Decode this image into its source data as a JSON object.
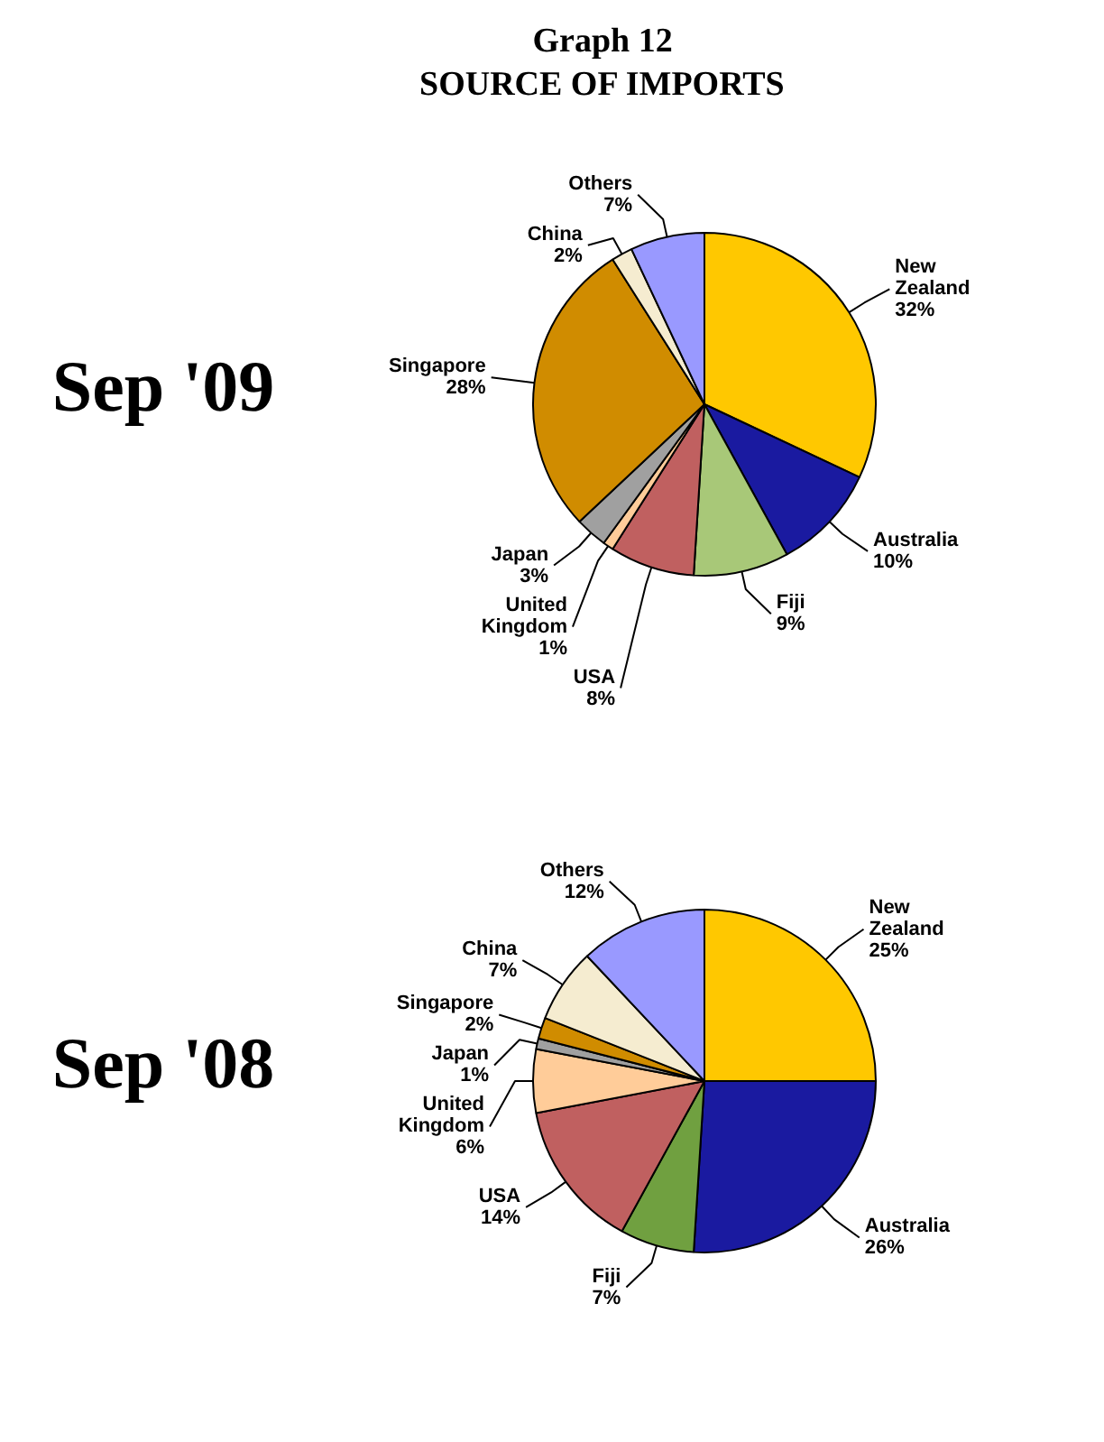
{
  "chart_data": [
    {
      "type": "pie",
      "title": "Sep '09",
      "annotations": [
        "Graph 12",
        "SOURCE OF IMPORTS"
      ],
      "categories": [
        "New Zealand",
        "Australia",
        "Fiji",
        "USA",
        "United Kingdom",
        "Japan",
        "Singapore",
        "China",
        "Others"
      ],
      "values": [
        32,
        10,
        9,
        8,
        1,
        3,
        28,
        2,
        7
      ],
      "value_labels": [
        "32%",
        "10%",
        "9%",
        "8%",
        "1%",
        "3%",
        "28%",
        "2%",
        "7%"
      ],
      "colors": [
        "#ffc800",
        "#1a1aa0",
        "#a8c878",
        "#c06060",
        "#ffcc99",
        "#a0a0a0",
        "#d08c00",
        "#f5ecd0",
        "#9999ff"
      ]
    },
    {
      "type": "pie",
      "title": "Sep '08",
      "categories": [
        "New Zealand",
        "Australia",
        "Fiji",
        "USA",
        "United Kingdom",
        "Japan",
        "Singapore",
        "China",
        "Others"
      ],
      "values": [
        25,
        26,
        7,
        14,
        6,
        1,
        2,
        7,
        12
      ],
      "value_labels": [
        "25%",
        "26%",
        "7%",
        "14%",
        "6%",
        "1%",
        "2%",
        "7%",
        "12%"
      ],
      "colors": [
        "#ffc800",
        "#1a1aa0",
        "#70a040",
        "#c06060",
        "#ffcc99",
        "#a0a0a0",
        "#d08c00",
        "#f5ecd0",
        "#9999ff"
      ]
    }
  ]
}
